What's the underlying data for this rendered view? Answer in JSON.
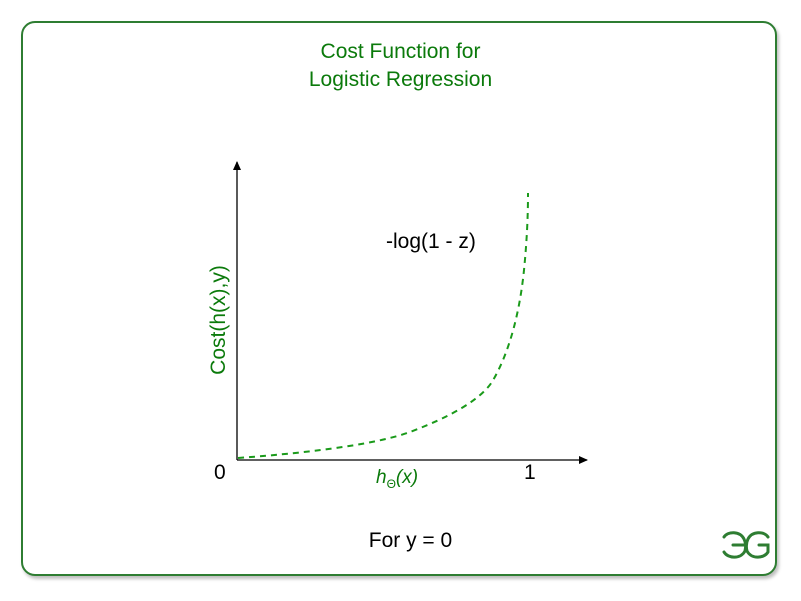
{
  "title": {
    "line1": "Cost Function for",
    "line2": "Logistic Regression"
  },
  "axes": {
    "y_label": "Cost(h(x),y)",
    "x_label_main": "h",
    "x_label_sub": "Θ",
    "x_label_arg": "(x)",
    "x_tick_start": "0",
    "x_tick_end": "1"
  },
  "curve": {
    "label": "-log(1 - z)",
    "style": "dashed",
    "color": "#1a9a1a"
  },
  "caption": "For y = 0",
  "logo": {
    "icon": "geeksforgeeks-logo-icon",
    "color": "#2e7d32"
  },
  "colors": {
    "accent": "#0b7a0b",
    "frame": "#2e7d32"
  }
}
